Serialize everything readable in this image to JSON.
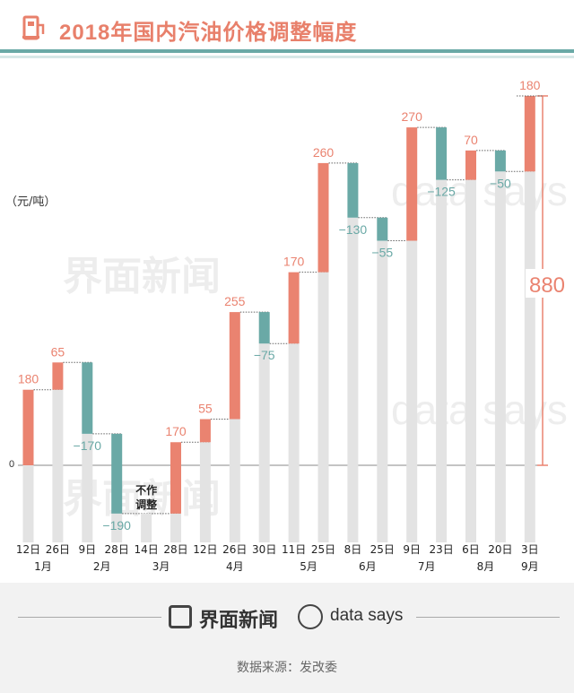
{
  "title": "2018年国内汽油价格调整幅度",
  "unit_label": "（元/吨）",
  "zero_label": "0",
  "no_adjust_label_line1": "不作",
  "no_adjust_label_line2": "调整",
  "total_label": "880",
  "footer": {
    "brand": "界面新闻",
    "datasays": "data says",
    "source": "数据来源：发改委"
  },
  "watermarks": {
    "brand": "界面新闻",
    "datasays": "data says"
  },
  "colors": {
    "increase": "#ea8370",
    "decrease": "#6aa9a6",
    "base": "#e3e3e3",
    "title": "#e8806b"
  },
  "chart_data": {
    "type": "bar",
    "subtype": "waterfall",
    "ylabel": "（元/吨）",
    "categories": [
      "12日",
      "26日",
      "9日",
      "28日",
      "14日",
      "28日",
      "12日",
      "26日",
      "30日",
      "11日",
      "25日",
      "8日",
      "25日",
      "9日",
      "23日",
      "6日",
      "20日",
      "3日"
    ],
    "months": [
      {
        "label": "1月",
        "start": 0,
        "end": 1
      },
      {
        "label": "2月",
        "start": 2,
        "end": 3
      },
      {
        "label": "3月",
        "start": 4,
        "end": 5
      },
      {
        "label": "4月",
        "start": 6,
        "end": 8
      },
      {
        "label": "5月",
        "start": 9,
        "end": 10
      },
      {
        "label": "6月",
        "start": 11,
        "end": 12
      },
      {
        "label": "7月",
        "start": 13,
        "end": 14
      },
      {
        "label": "8月",
        "start": 15,
        "end": 16
      },
      {
        "label": "9月",
        "start": 17,
        "end": 17
      }
    ],
    "values": [
      180,
      65,
      -170,
      -190,
      0,
      170,
      55,
      255,
      -75,
      170,
      260,
      -130,
      -55,
      270,
      -125,
      70,
      -50,
      180
    ],
    "value_labels": [
      "180",
      "65",
      "−170",
      "−190",
      "",
      "170",
      "55",
      "255",
      "−75",
      "170",
      "260",
      "−130",
      "−55",
      "270",
      "−125",
      "70",
      "−50",
      "180"
    ],
    "no_adjust_index": 4,
    "total": 880,
    "ylim": [
      -215,
      920
    ]
  }
}
